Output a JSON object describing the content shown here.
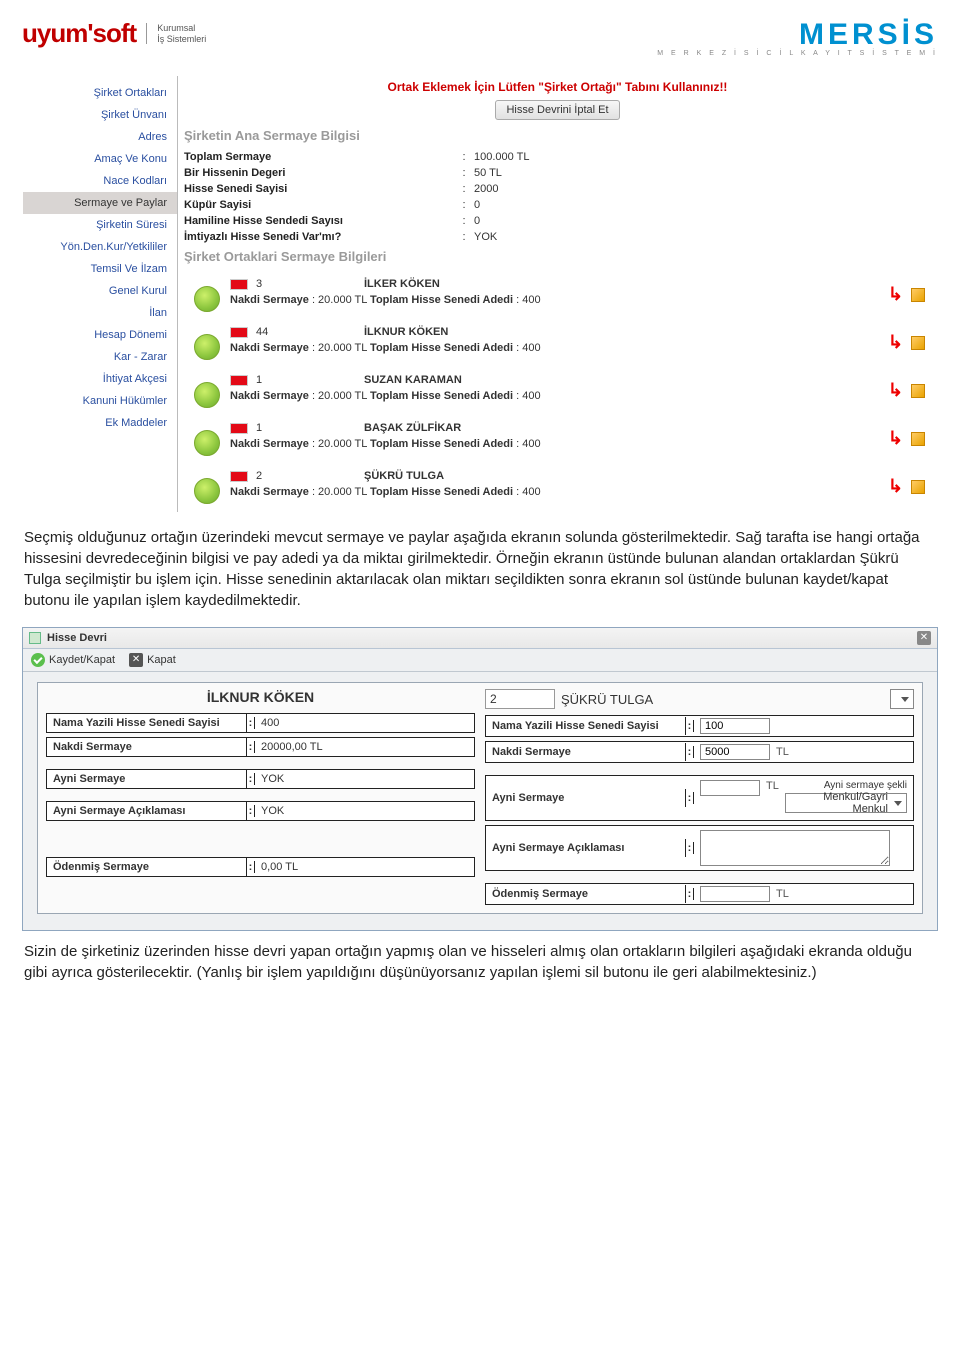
{
  "header": {
    "left_logo": "uyumsoft",
    "left_sub_line1": "Kurumsal",
    "left_sub_line2": "İş Sistemleri",
    "right_logo": "MERSİS",
    "right_sub": "M E R K E Z İ   S İ C İ L   K A Y I T   S İ S T E M İ"
  },
  "sidebar": {
    "items": [
      "Şirket Ortakları",
      "Şirket Ünvanı",
      "Adres",
      "Amaç Ve Konu",
      "Nace Kodları",
      "Sermaye ve Paylar",
      "Şirketin Süresi",
      "Yön.Den.Kur/Yetkililer",
      "Temsil Ve İlzam",
      "Genel Kurul",
      "İlan",
      "Hesap Dönemi",
      "Kar - Zarar",
      "İhtiyat Akçesi",
      "Kanuni Hükümler",
      "Ek Maddeler"
    ],
    "active_index": 5
  },
  "screen1": {
    "notice": "Ortak Eklemek İçin Lütfen \"Şirket Ortağı\" Tabını Kullanınız!!",
    "cancel_btn": "Hisse Devrini İptal Et",
    "section1_title": "Şirketin Ana Sermaye Bilgisi",
    "capital": [
      {
        "k": "Toplam Sermaye",
        "v": "100.000 TL"
      },
      {
        "k": "Bir Hissenin Degeri",
        "v": "50 TL"
      },
      {
        "k": "Hisse Senedi Sayisi",
        "v": "2000"
      },
      {
        "k": "Küpür Sayisi",
        "v": "0"
      },
      {
        "k": "Hamiline Hisse Sendedi Sayısı",
        "v": "0"
      },
      {
        "k": "İmtiyazlı Hisse Senedi Var'mı?",
        "v": "YOK"
      }
    ],
    "section2_title": "Şirket Ortaklari Sermaye Bilgileri",
    "partners": [
      {
        "id": "3",
        "name": "İLKER KÖKEN",
        "nakdi_lbl": "Nakdi Sermaye",
        "nakdi": "20.000 TL",
        "hisse_lbl": "Toplam Hisse Senedi Adedi",
        "hisse": "400"
      },
      {
        "id": "44",
        "name": "İLKNUR KÖKEN",
        "nakdi_lbl": "Nakdi Sermaye",
        "nakdi": "20.000 TL",
        "hisse_lbl": "Toplam Hisse Senedi Adedi",
        "hisse": "400"
      },
      {
        "id": "1",
        "name": "SUZAN KARAMAN",
        "nakdi_lbl": "Nakdi Sermaye",
        "nakdi": "20.000 TL",
        "hisse_lbl": "Toplam Hisse Senedi Adedi",
        "hisse": "400"
      },
      {
        "id": "1",
        "name": "BAŞAK ZÜLFİKAR",
        "nakdi_lbl": "Nakdi Sermaye",
        "nakdi": "20.000 TL",
        "hisse_lbl": "Toplam Hisse Senedi Adedi",
        "hisse": "400"
      },
      {
        "id": "2",
        "name": "ŞÜKRÜ TULGA",
        "nakdi_lbl": "Nakdi Sermaye",
        "nakdi": "20.000 TL",
        "hisse_lbl": "Toplam Hisse Senedi Adedi",
        "hisse": "400"
      }
    ]
  },
  "paragraph1": "Seçmiş olduğunuz ortağın üzerindeki mevcut sermaye ve paylar aşağıda ekranın solunda gösterilmektedir. Sağ tarafta ise hangi ortağa hissesini devredeceğinin bilgisi ve pay adedi ya da miktaı girilmektedir. Örneğin ekranın üstünde bulunan alandan ortaklardan Şükrü Tulga seçilmiştir bu işlem için. Hisse senedinin aktarılacak olan miktarı seçildikten sonra ekranın sol üstünde bulunan kaydet/kapat butonu ile yapılan işlem kaydedilmektedir.",
  "screen2": {
    "title": "Hisse Devri",
    "tb_save": "Kaydet/Kapat",
    "tb_close": "Kapat",
    "left": {
      "name": "İLKNUR KÖKEN",
      "rows": [
        {
          "lab": "Nama Yazili Hisse Senedi Sayisi",
          "val": "400"
        },
        {
          "lab": "Nakdi Sermaye",
          "val": "20000,00 TL"
        },
        {
          "lab": "Ayni Sermaye",
          "val": "YOK"
        },
        {
          "lab": "Ayni Sermaye Açıklaması",
          "val": "YOK"
        },
        {
          "lab": "Ödenmiş Sermaye",
          "val": "0,00 TL"
        }
      ]
    },
    "right": {
      "sel_id": "2",
      "sel_name": "ŞÜKRÜ TULGA",
      "rows": [
        {
          "lab": "Nama Yazili Hisse Senedi Sayisi",
          "val": "100"
        },
        {
          "lab": "Nakdi Sermaye",
          "val": "5000",
          "unit": "TL"
        },
        {
          "lab": "Ayni Sermaye",
          "val": "",
          "unit": "TL",
          "extra_lab": "Ayni sermaye şekli",
          "extra_val": "Menkul/Gayri Menkul"
        },
        {
          "lab": "Ayni Sermaye Açıklaması",
          "val": ""
        },
        {
          "lab": "Ödenmiş Sermaye",
          "val": "",
          "unit": "TL"
        }
      ]
    }
  },
  "paragraph2": "Sizin de şirketiniz üzerinden hisse devri yapan ortağın yapmış olan ve hisseleri almış olan ortakların bilgileri aşağıdaki ekranda olduğu gibi ayrıca gösterilecektir. (Yanlış bir işlem yapıldığını düşünüyorsanız yapılan işlemi sil butonu ile geri alabilmektesiniz.)"
}
